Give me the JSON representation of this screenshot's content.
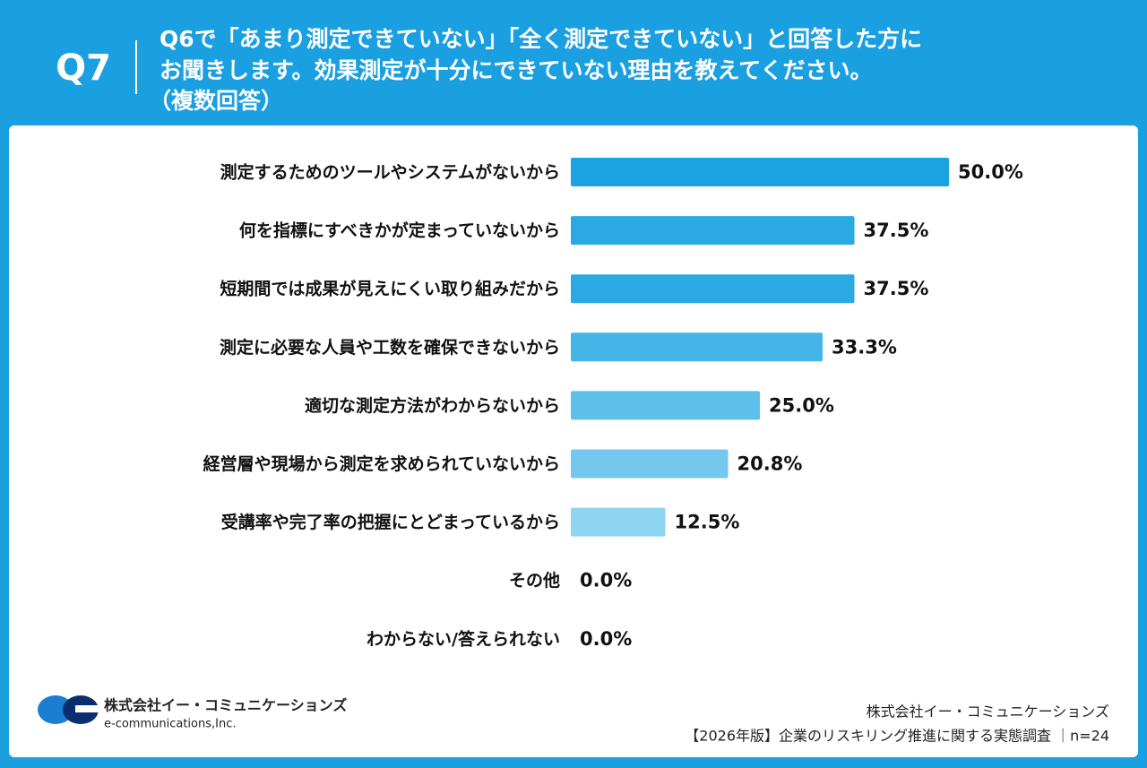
{
  "header": {
    "question_no": "Q7",
    "title_lines": [
      "Q6で「あまり測定できていない」「全く測定できていない」と回答した方に",
      "お聞きします。効果測定が十分にできていない理由を教えてください。",
      "（複数回答）"
    ]
  },
  "chart_data": {
    "type": "bar",
    "orientation": "horizontal",
    "categories": [
      "測定するためのツールやシステムがないから",
      "何を指標にすべきかが定まっていないから",
      "短期間では成果が見えにくい取り組みだから",
      "測定に必要な人員や工数を確保できないから",
      "適切な測定方法がわからないから",
      "経営層や現場から測定を求められていないから",
      "受講率や完了率の把握にとどまっているから",
      "その他",
      "わからない/答えられない"
    ],
    "values": [
      50.0,
      37.5,
      37.5,
      33.3,
      25.0,
      20.8,
      12.5,
      0.0,
      0.0
    ],
    "value_labels": [
      "50.0%",
      "37.5%",
      "37.5%",
      "33.3%",
      "25.0%",
      "20.8%",
      "12.5%",
      "0.0%",
      "0.0%"
    ],
    "colors": [
      "#1ba2e0",
      "#2aa9e3",
      "#2aa9e3",
      "#45b5e7",
      "#5dbfea",
      "#74c8ed",
      "#8dd5f1",
      "#8dd5f1",
      "#8dd5f1"
    ]
  },
  "footer": {
    "company_jp": "株式会社イー・コミュニケーションズ",
    "company_en": "e-communications,Inc.",
    "source_company": "株式会社イー・コミュニケーションズ",
    "source_survey": "【2026年版】企業のリスキリング推進に関する実態調査 ｜n=24"
  }
}
